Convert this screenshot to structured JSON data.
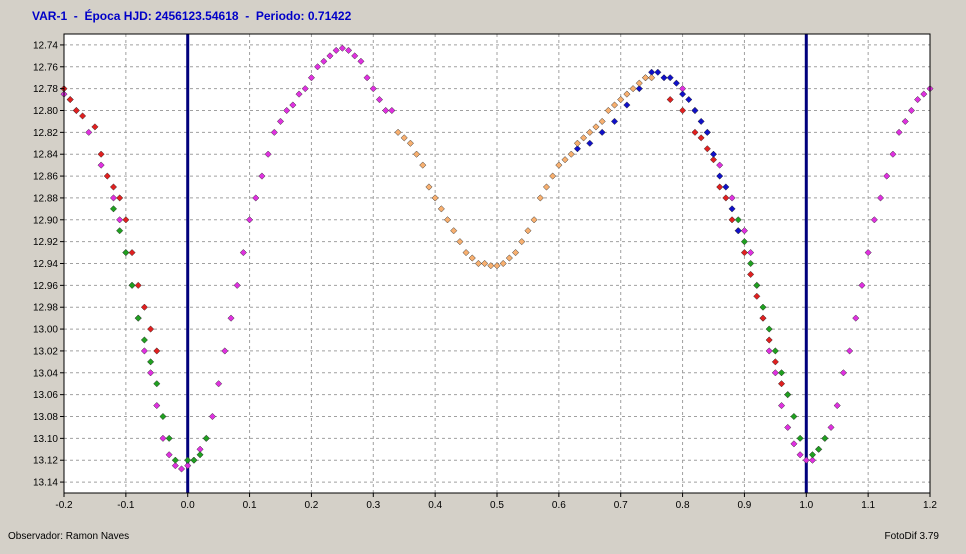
{
  "title": {
    "text": "VAR-1  -  Época HJD: 2456123.54618  -  Periodo: 0.71422"
  },
  "footer": {
    "observer": "Observador: Ramon Naves",
    "software": "FotoDif 3.79"
  },
  "colors": {
    "background": "#d4d0c8",
    "plot_bg": "#ffffff",
    "grid": "#a0a0a0",
    "phase_lines": "#00007c",
    "title": "#0000c8",
    "magenta": "#e030e0",
    "red": "#e02020",
    "green": "#20a020",
    "blue": "#1010c8",
    "orange": "#f8b070"
  },
  "chart_data": {
    "type": "scatter",
    "title": "",
    "xlabel": "",
    "ylabel": "",
    "xlim": [
      -0.2,
      1.2
    ],
    "ylim": [
      12.73,
      13.15
    ],
    "y_inverted": true,
    "grid": true,
    "legend": "none",
    "x_ticks": [
      "-0.2",
      "-0.1",
      "0.0",
      "0.1",
      "0.2",
      "0.3",
      "0.4",
      "0.5",
      "0.6",
      "0.7",
      "0.8",
      "0.9",
      "1.0",
      "1.1",
      "1.2"
    ],
    "y_ticks": [
      "12.74",
      "12.76",
      "12.78",
      "12.80",
      "12.82",
      "12.84",
      "12.86",
      "12.88",
      "12.90",
      "12.92",
      "12.94",
      "12.96",
      "12.98",
      "13.00",
      "13.02",
      "13.04",
      "13.06",
      "13.08",
      "13.10",
      "13.12",
      "13.14"
    ],
    "phase_markers": [
      0.0,
      1.0
    ],
    "series": [
      {
        "color_key": "magenta",
        "x": [
          -0.2,
          -0.19,
          -0.18,
          -0.16,
          -0.14,
          -0.12,
          -0.11,
          -0.1,
          -0.09,
          -0.08,
          -0.07,
          -0.06,
          -0.05,
          -0.04,
          -0.03,
          -0.02,
          -0.01,
          0.0,
          0.01,
          0.02,
          0.03,
          0.04,
          0.05,
          0.06,
          0.07,
          0.08,
          0.09,
          0.1,
          0.11,
          0.12,
          0.13,
          0.14,
          0.15,
          0.16,
          0.17,
          0.18,
          0.19,
          0.2,
          0.21,
          0.22,
          0.23,
          0.24,
          0.25,
          0.26,
          0.27,
          0.28,
          0.29,
          0.3,
          0.31,
          0.32,
          0.33,
          0.8,
          0.82,
          0.84,
          0.86,
          0.88,
          0.9,
          0.91,
          0.92,
          0.93,
          0.94,
          0.95,
          0.96,
          0.97,
          0.98,
          0.99,
          1.0,
          1.01,
          1.02,
          1.03,
          1.04,
          1.05,
          1.06,
          1.07,
          1.08,
          1.09,
          1.1,
          1.11,
          1.12,
          1.13,
          1.14,
          1.15,
          1.16,
          1.17,
          1.18,
          1.19,
          1.2
        ],
        "y": [
          12.785,
          12.79,
          12.8,
          12.82,
          12.85,
          12.88,
          12.9,
          12.93,
          12.96,
          12.99,
          13.02,
          13.04,
          13.07,
          13.1,
          13.115,
          13.125,
          13.128,
          13.125,
          13.12,
          13.11,
          13.1,
          13.08,
          13.05,
          13.02,
          12.99,
          12.96,
          12.93,
          12.9,
          12.88,
          12.86,
          12.84,
          12.82,
          12.81,
          12.8,
          12.795,
          12.785,
          12.78,
          12.77,
          12.76,
          12.755,
          12.75,
          12.745,
          12.743,
          12.745,
          12.75,
          12.755,
          12.77,
          12.78,
          12.79,
          12.8,
          12.8,
          12.78,
          12.8,
          12.82,
          12.85,
          12.88,
          12.91,
          12.93,
          12.96,
          12.99,
          13.02,
          13.04,
          13.07,
          13.09,
          13.105,
          13.115,
          13.12,
          13.12,
          13.11,
          13.1,
          13.09,
          13.07,
          13.04,
          13.02,
          12.99,
          12.96,
          12.93,
          12.9,
          12.88,
          12.86,
          12.84,
          12.82,
          12.81,
          12.8,
          12.79,
          12.785,
          12.78
        ]
      },
      {
        "color_key": "red",
        "x": [
          -0.2,
          -0.19,
          -0.18,
          -0.17,
          -0.15,
          -0.14,
          -0.13,
          -0.12,
          -0.11,
          -0.1,
          -0.09,
          -0.08,
          -0.07,
          -0.06,
          -0.05,
          0.78,
          0.8,
          0.82,
          0.83,
          0.84,
          0.85,
          0.86,
          0.87,
          0.88,
          0.89,
          0.9,
          0.91,
          0.92,
          0.93,
          0.94,
          0.95,
          0.96,
          0.97
        ],
        "y": [
          12.78,
          12.79,
          12.8,
          12.805,
          12.815,
          12.84,
          12.86,
          12.87,
          12.88,
          12.9,
          12.93,
          12.96,
          12.98,
          13.0,
          13.02,
          12.79,
          12.8,
          12.82,
          12.825,
          12.835,
          12.845,
          12.87,
          12.88,
          12.9,
          12.91,
          12.93,
          12.95,
          12.97,
          12.99,
          13.01,
          13.03,
          13.05,
          13.06
        ]
      },
      {
        "color_key": "green",
        "x": [
          -0.12,
          -0.11,
          -0.1,
          -0.09,
          -0.08,
          -0.07,
          -0.06,
          -0.05,
          -0.04,
          -0.03,
          -0.02,
          0.0,
          0.01,
          0.02,
          0.03,
          0.89,
          0.9,
          0.91,
          0.92,
          0.93,
          0.94,
          0.95,
          0.96,
          0.97,
          0.98,
          0.99,
          1.01,
          1.02,
          1.03
        ],
        "y": [
          12.89,
          12.91,
          12.93,
          12.96,
          12.99,
          13.01,
          13.03,
          13.05,
          13.08,
          13.1,
          13.12,
          13.12,
          13.12,
          13.115,
          13.1,
          12.9,
          12.92,
          12.94,
          12.96,
          12.98,
          13.0,
          13.02,
          13.04,
          13.06,
          13.08,
          13.1,
          13.115,
          13.11,
          13.1
        ]
      },
      {
        "color_key": "blue",
        "x": [
          0.63,
          0.65,
          0.67,
          0.69,
          0.71,
          0.73,
          0.74,
          0.75,
          0.76,
          0.77,
          0.78,
          0.79,
          0.8,
          0.81,
          0.82,
          0.83,
          0.84,
          0.85,
          0.86,
          0.87,
          0.88,
          0.89
        ],
        "y": [
          12.835,
          12.83,
          12.82,
          12.81,
          12.795,
          12.78,
          12.77,
          12.765,
          12.765,
          12.77,
          12.77,
          12.775,
          12.785,
          12.79,
          12.8,
          12.81,
          12.82,
          12.84,
          12.86,
          12.87,
          12.89,
          12.91
        ]
      },
      {
        "color_key": "orange",
        "x": [
          0.34,
          0.35,
          0.36,
          0.37,
          0.38,
          0.39,
          0.4,
          0.41,
          0.42,
          0.43,
          0.44,
          0.45,
          0.46,
          0.47,
          0.48,
          0.49,
          0.5,
          0.51,
          0.52,
          0.53,
          0.54,
          0.55,
          0.56,
          0.57,
          0.58,
          0.59,
          0.6,
          0.61,
          0.62,
          0.63,
          0.64,
          0.65,
          0.66,
          0.67,
          0.68,
          0.69,
          0.7,
          0.71,
          0.72,
          0.73,
          0.74,
          0.75
        ],
        "y": [
          12.82,
          12.825,
          12.83,
          12.84,
          12.85,
          12.87,
          12.88,
          12.89,
          12.9,
          12.91,
          12.92,
          12.93,
          12.935,
          12.94,
          12.94,
          12.942,
          12.942,
          12.94,
          12.935,
          12.93,
          12.92,
          12.91,
          12.9,
          12.88,
          12.87,
          12.86,
          12.85,
          12.845,
          12.84,
          12.83,
          12.825,
          12.82,
          12.815,
          12.81,
          12.8,
          12.795,
          12.79,
          12.785,
          12.78,
          12.775,
          12.77,
          12.77
        ]
      }
    ]
  }
}
